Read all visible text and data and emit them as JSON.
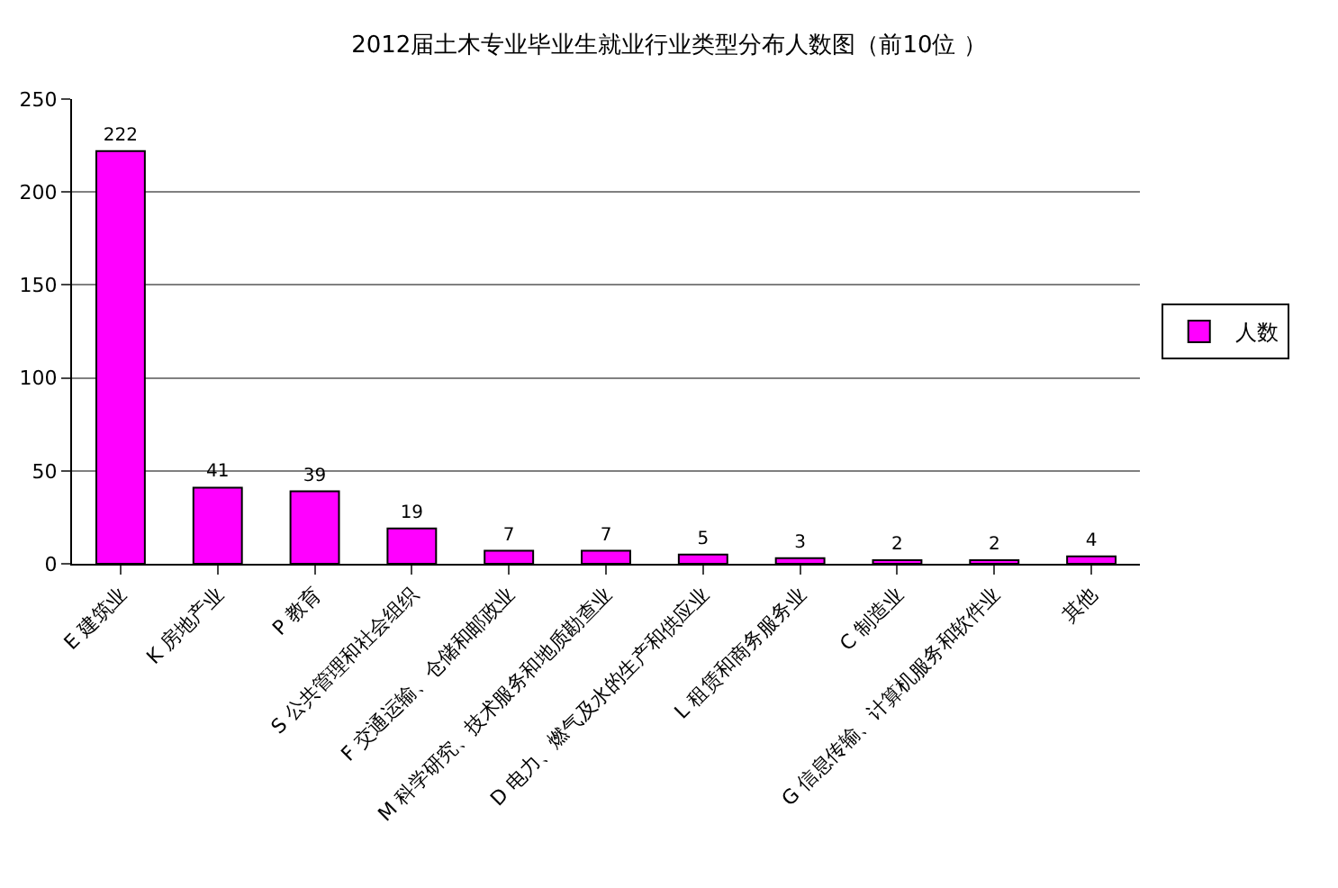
{
  "chart_data": {
    "type": "bar",
    "title": "2012届土木专业毕业生就业行业类型分布人数图（前10位 ）",
    "categories": [
      "E 建筑业",
      "K 房地产业",
      "P 教育",
      "S 公共管理和社会组织",
      "F 交通运输、仓储和邮政业",
      "M 科学研究、技术服务和地质勘查业",
      "D 电力、燃气及水的生产和供应业",
      "L 租赁和商务服务业",
      "C 制造业",
      "G 信息传输、计算机服务和软件业",
      "其他"
    ],
    "series": [
      {
        "name": "人数",
        "color": "#ff00ff",
        "values": [
          222,
          41,
          39,
          19,
          7,
          7,
          5,
          3,
          2,
          2,
          4
        ]
      }
    ],
    "ylim": [
      0,
      250
    ],
    "yticks": [
      0,
      50,
      100,
      150,
      200,
      250
    ],
    "grid": "y",
    "legend": "right",
    "data_labels": true
  }
}
